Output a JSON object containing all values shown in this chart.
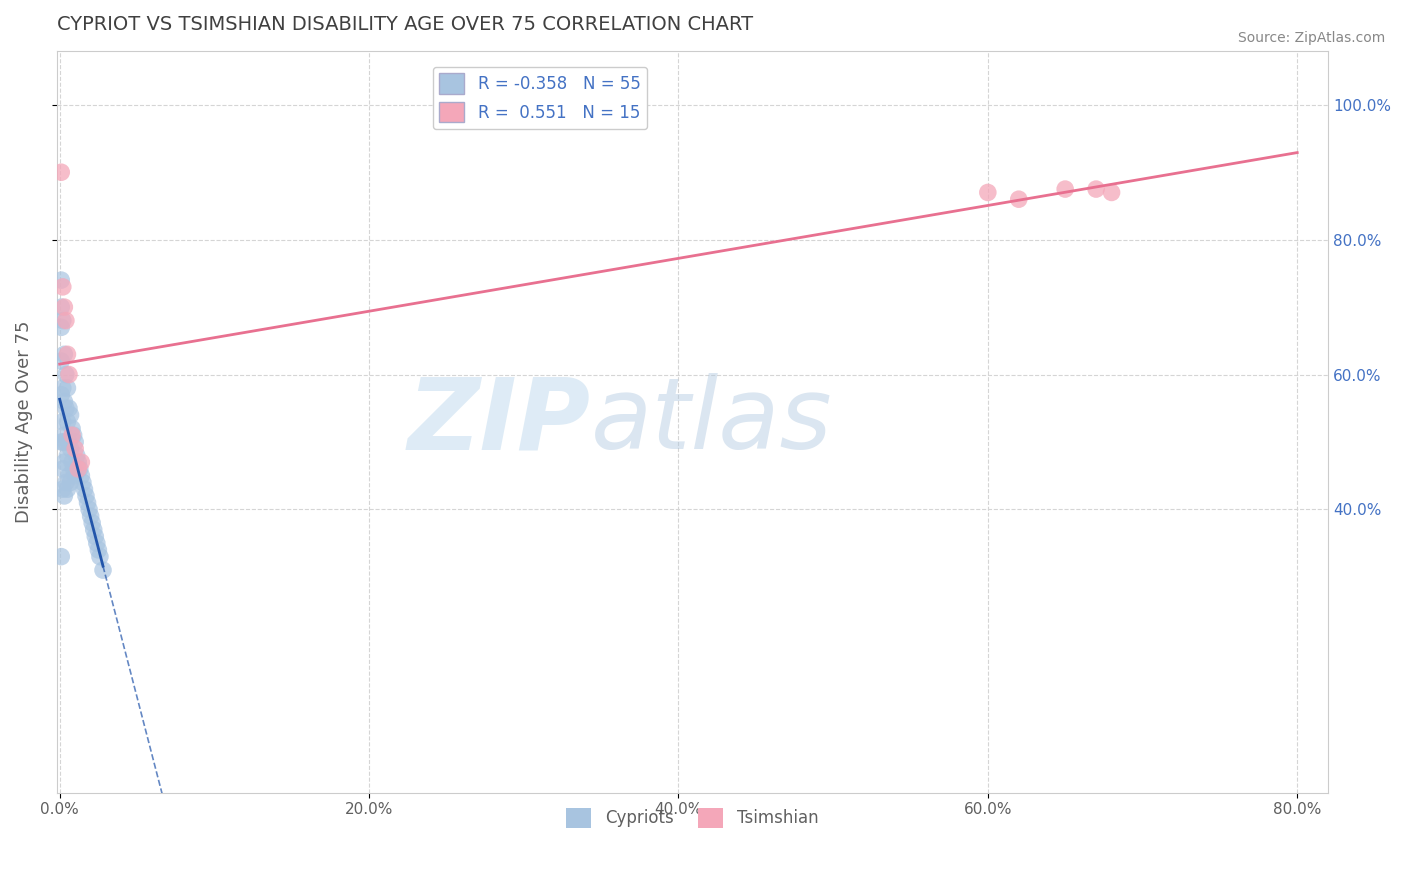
{
  "title": "CYPRIOT VS TSIMSHIAN DISABILITY AGE OVER 75 CORRELATION CHART",
  "source_text": "Source: ZipAtlas.com",
  "ylabel": "Disability Age Over 75",
  "xmin": -0.002,
  "xmax": 0.82,
  "ymin": -0.02,
  "ymax": 1.08,
  "xtick_labels": [
    "0.0%",
    "20.0%",
    "40.0%",
    "60.0%",
    "80.0%"
  ],
  "xtick_vals": [
    0.0,
    0.2,
    0.4,
    0.6,
    0.8
  ],
  "ytick_labels_left": [],
  "ytick_vals": [
    0.4,
    0.6,
    0.8,
    1.0
  ],
  "ytick_labels_right": [
    "40.0%",
    "60.0%",
    "80.0%",
    "100.0%"
  ],
  "cypriot_color": "#a8c4e0",
  "tsimshian_color": "#f4a7b9",
  "cypriot_R": -0.358,
  "cypriot_N": 55,
  "tsimshian_R": 0.551,
  "tsimshian_N": 15,
  "legend_label_1": "Cypriots",
  "legend_label_2": "Tsimshian",
  "watermark_zip": "ZIP",
  "watermark_atlas": "atlas",
  "cypriot_line_color": "#2255aa",
  "tsimshian_line_color": "#e87090",
  "cypriot_x": [
    0.001,
    0.001,
    0.001,
    0.001,
    0.001,
    0.001,
    0.001,
    0.002,
    0.002,
    0.002,
    0.002,
    0.002,
    0.002,
    0.003,
    0.003,
    0.003,
    0.003,
    0.003,
    0.004,
    0.004,
    0.004,
    0.004,
    0.005,
    0.005,
    0.005,
    0.005,
    0.006,
    0.006,
    0.006,
    0.007,
    0.007,
    0.007,
    0.008,
    0.008,
    0.009,
    0.009,
    0.01,
    0.01,
    0.011,
    0.012,
    0.013,
    0.014,
    0.015,
    0.016,
    0.017,
    0.018,
    0.019,
    0.02,
    0.021,
    0.022,
    0.023,
    0.024,
    0.025,
    0.026,
    0.028
  ],
  "cypriot_y": [
    0.74,
    0.7,
    0.67,
    0.62,
    0.57,
    0.5,
    0.33,
    0.68,
    0.58,
    0.53,
    0.5,
    0.46,
    0.43,
    0.63,
    0.56,
    0.51,
    0.47,
    0.42,
    0.6,
    0.55,
    0.5,
    0.44,
    0.58,
    0.53,
    0.48,
    0.43,
    0.55,
    0.5,
    0.45,
    0.54,
    0.49,
    0.44,
    0.52,
    0.47,
    0.51,
    0.46,
    0.5,
    0.45,
    0.48,
    0.47,
    0.46,
    0.45,
    0.44,
    0.43,
    0.42,
    0.41,
    0.4,
    0.39,
    0.38,
    0.37,
    0.36,
    0.35,
    0.34,
    0.33,
    0.31
  ],
  "tsimshian_x": [
    0.001,
    0.002,
    0.003,
    0.004,
    0.005,
    0.006,
    0.008,
    0.01,
    0.012,
    0.014,
    0.6,
    0.62,
    0.65,
    0.67,
    0.68
  ],
  "tsimshian_y": [
    0.9,
    0.73,
    0.7,
    0.68,
    0.63,
    0.6,
    0.51,
    0.49,
    0.46,
    0.47,
    0.87,
    0.86,
    0.875,
    0.875,
    0.87
  ],
  "grid_color": "#d5d5d5",
  "bg_color": "#ffffff",
  "title_color": "#404040",
  "axis_label_color": "#606060"
}
